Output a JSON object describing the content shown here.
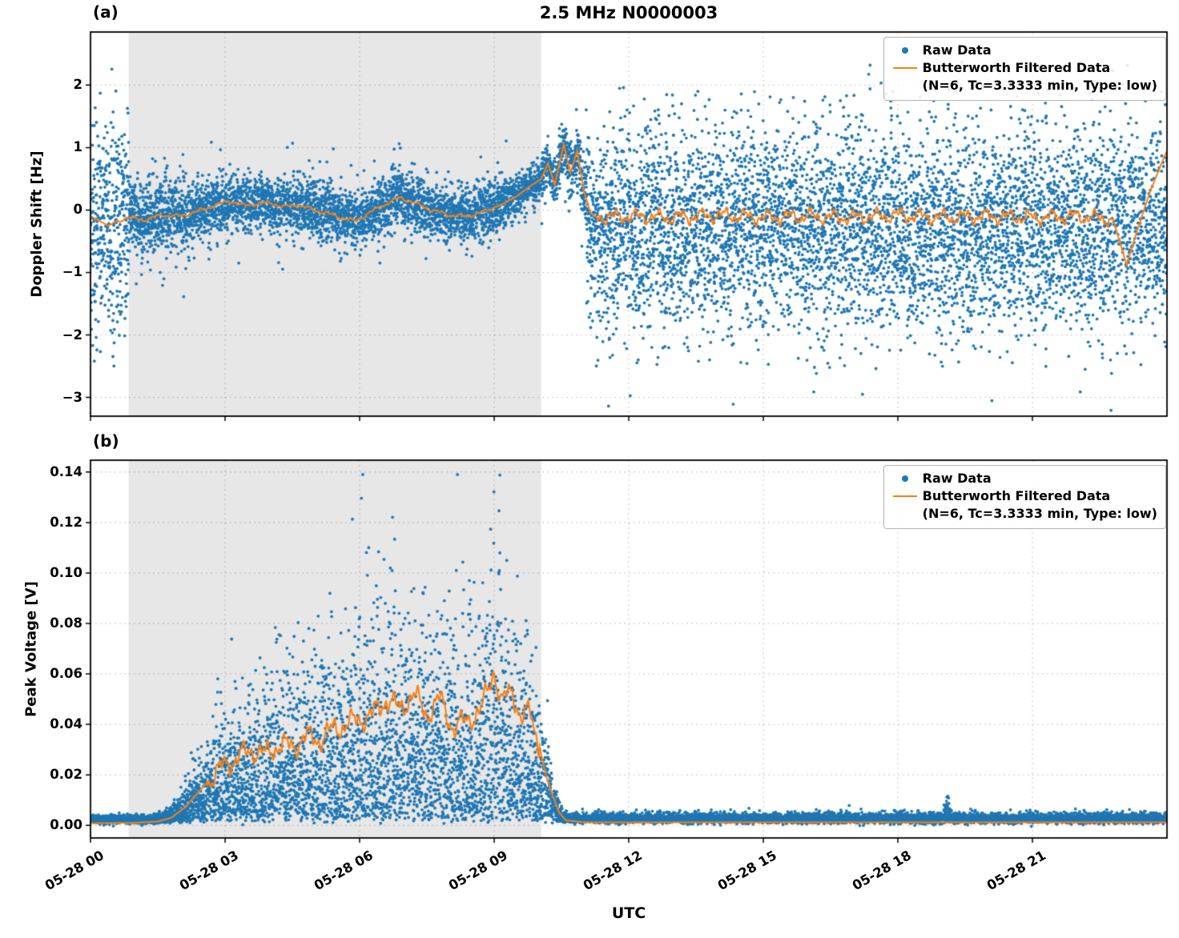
{
  "figure": {
    "title": "2.5 MHz N0000003",
    "panel_a_label": "(a)",
    "panel_b_label": "(b)",
    "xlabel": "UTC",
    "background": "#ffffff",
    "shade_color": "#e7e7e7"
  },
  "chart_data": [
    {
      "id": "a",
      "type": "scatter",
      "title": "2.5 MHz N0000003",
      "ylabel": "Doppler Shift [Hz]",
      "ylim": [
        -3.3,
        2.85
      ],
      "yticks": [
        {
          "v": 2,
          "label": "2"
        },
        {
          "v": 1,
          "label": "1"
        },
        {
          "v": 0,
          "label": "0"
        },
        {
          "v": -1,
          "label": "−1"
        },
        {
          "v": -2,
          "label": "−2"
        },
        {
          "v": -3,
          "label": "−3"
        }
      ],
      "xlim_hours": [
        0,
        24
      ],
      "xticks": [
        {
          "h": 0,
          "label": "05-28 00"
        },
        {
          "h": 3,
          "label": "05-28 03"
        },
        {
          "h": 6,
          "label": "05-28 06"
        },
        {
          "h": 9,
          "label": "05-28 09"
        },
        {
          "h": 12,
          "label": "05-28 12"
        },
        {
          "h": 15,
          "label": "05-28 15"
        },
        {
          "h": 18,
          "label": "05-28 18"
        },
        {
          "h": 21,
          "label": "05-28 21"
        }
      ],
      "xticklabels_visible": false,
      "grid": true,
      "legend_position": "upper right",
      "shaded_region_hours": [
        0.85,
        10.05
      ],
      "legend": {
        "raw": "Raw Data",
        "filtered_line1": "Butterworth Filtered Data",
        "filtered_line2": "(N=6, Tc=3.3333 min, Type: low)"
      },
      "series": {
        "raw": {
          "name": "Raw Data",
          "color": "#1f77b4",
          "marker_size": 1.9,
          "n_points": 11000,
          "segments": [
            {
              "t": [
                0,
                0.85
              ],
              "center": -0.25,
              "spread": 0.8,
              "outlier_frac": 0.03,
              "outlier_scale": 1.5
            },
            {
              "t": [
                0.85,
                2.2
              ],
              "follow": true,
              "spread": 0.3,
              "outlier_frac": 0.015,
              "outlier_scale": 0.8
            },
            {
              "t": [
                2.2,
                9.3
              ],
              "follow": true,
              "spread": 0.22,
              "outlier_frac": 0.012,
              "outlier_scale": 0.7
            },
            {
              "t": [
                9.3,
                10.45
              ],
              "follow": true,
              "spread": 0.16,
              "outlier_frac": 0.01,
              "outlier_scale": 0.5
            },
            {
              "t": [
                10.45,
                11.05
              ],
              "follow": true,
              "spread": 0.25,
              "outlier_frac": 0.02,
              "outlier_scale": 0.8
            },
            {
              "t": [
                11.05,
                24
              ],
              "center": -0.3,
              "spread": 0.78,
              "outlier_frac": 0.04,
              "outlier_scale": 1.5
            }
          ]
        },
        "filtered": {
          "name": "Butterworth Filtered Data (N=6, Tc=3.3333 min, Type: low)",
          "color": "#ff7f0e",
          "line_width": 2.0,
          "control_points": [
            [
              0,
              -0.1
            ],
            [
              0.4,
              -0.25
            ],
            [
              0.8,
              -0.12
            ],
            [
              1.2,
              -0.16
            ],
            [
              1.6,
              -0.08
            ],
            [
              2,
              -0.1
            ],
            [
              2.4,
              -0.02
            ],
            [
              2.8,
              0.08
            ],
            [
              3.1,
              0.15
            ],
            [
              3.4,
              0.07
            ],
            [
              3.7,
              0.1
            ],
            [
              4,
              0.12
            ],
            [
              4.3,
              0.05
            ],
            [
              4.6,
              0.08
            ],
            [
              5,
              0
            ],
            [
              5.4,
              -0.08
            ],
            [
              5.9,
              -0.18
            ],
            [
              6.2,
              -0.05
            ],
            [
              6.6,
              0.1
            ],
            [
              6.9,
              0.2
            ],
            [
              7.2,
              0.12
            ],
            [
              7.6,
              0
            ],
            [
              8,
              -0.08
            ],
            [
              8.4,
              -0.1
            ],
            [
              8.8,
              -0.02
            ],
            [
              9.2,
              0.1
            ],
            [
              9.5,
              0.22
            ],
            [
              9.8,
              0.38
            ],
            [
              10.05,
              0.5
            ],
            [
              10.2,
              0.75
            ],
            [
              10.35,
              0.4
            ],
            [
              10.55,
              1.05
            ],
            [
              10.7,
              0.6
            ],
            [
              10.85,
              0.95
            ],
            [
              11,
              0.3
            ],
            [
              11.15,
              -0.05
            ],
            [
              11.3,
              -0.12
            ],
            [
              12,
              -0.1
            ],
            [
              13,
              -0.12
            ],
            [
              14,
              -0.08
            ],
            [
              15,
              -0.12
            ],
            [
              16,
              -0.1
            ],
            [
              17,
              -0.12
            ],
            [
              18,
              -0.08
            ],
            [
              19,
              -0.12
            ],
            [
              20,
              -0.1
            ],
            [
              21,
              -0.12
            ],
            [
              22,
              -0.1
            ],
            [
              22.8,
              -0.15
            ],
            [
              23.1,
              -0.88
            ],
            [
              23.35,
              -0.3
            ],
            [
              23.6,
              0.25
            ],
            [
              23.85,
              0.7
            ],
            [
              24,
              0.95
            ]
          ],
          "wiggles": [
            {
              "t": [
                0.5,
                9.0
              ],
              "amp": 0.04
            },
            {
              "t": [
                11.3,
                22.7
              ],
              "amp": 0.15
            }
          ]
        }
      }
    },
    {
      "id": "b",
      "type": "scatter",
      "title": "",
      "ylabel": "Peak Voltage [V]",
      "ylim": [
        -0.005,
        0.1447
      ],
      "yticks": [
        {
          "v": 0.14,
          "label": "0.14"
        },
        {
          "v": 0.12,
          "label": "0.12"
        },
        {
          "v": 0.1,
          "label": "0.10"
        },
        {
          "v": 0.08,
          "label": "0.08"
        },
        {
          "v": 0.06,
          "label": "0.06"
        },
        {
          "v": 0.04,
          "label": "0.04"
        },
        {
          "v": 0.02,
          "label": "0.02"
        },
        {
          "v": 0.0,
          "label": "0.00"
        }
      ],
      "xlim_hours": [
        0,
        24
      ],
      "xticks": [
        {
          "h": 0,
          "label": "05-28 00"
        },
        {
          "h": 3,
          "label": "05-28 03"
        },
        {
          "h": 6,
          "label": "05-28 06"
        },
        {
          "h": 9,
          "label": "05-28 09"
        },
        {
          "h": 12,
          "label": "05-28 12"
        },
        {
          "h": 15,
          "label": "05-28 15"
        },
        {
          "h": 18,
          "label": "05-28 18"
        },
        {
          "h": 21,
          "label": "05-28 21"
        }
      ],
      "xticklabels_visible": true,
      "grid": true,
      "legend_position": "upper right",
      "shaded_region_hours": [
        0.85,
        10.05
      ],
      "legend": {
        "raw": "Raw Data",
        "filtered_line1": "Butterworth Filtered Data",
        "filtered_line2": "(N=6, Tc=3.3333 min, Type: low)"
      },
      "series": {
        "raw": {
          "name": "Raw Data",
          "color": "#1f77b4",
          "marker_size": 1.9,
          "n_points": 11000,
          "baseline": 0.0018,
          "baseline_noise": 0.0007,
          "shape_divisor": 2.6,
          "envelope_upper": [
            [
              0,
              0.0015
            ],
            [
              1.3,
              0.002
            ],
            [
              1.7,
              0.005
            ],
            [
              2.0,
              0.012
            ],
            [
              2.3,
              0.025
            ],
            [
              2.6,
              0.04
            ],
            [
              3.0,
              0.052
            ],
            [
              3.4,
              0.06
            ],
            [
              3.8,
              0.065
            ],
            [
              4.2,
              0.07
            ],
            [
              4.6,
              0.075
            ],
            [
              5.0,
              0.08
            ],
            [
              5.4,
              0.082
            ],
            [
              5.8,
              0.09
            ],
            [
              6.2,
              0.095
            ],
            [
              6.6,
              0.1
            ],
            [
              7.0,
              0.108
            ],
            [
              7.3,
              0.1
            ],
            [
              7.6,
              0.092
            ],
            [
              8.0,
              0.098
            ],
            [
              8.4,
              0.09
            ],
            [
              8.7,
              0.095
            ],
            [
              9.0,
              0.13
            ],
            [
              9.1,
              0.137
            ],
            [
              9.25,
              0.105
            ],
            [
              9.5,
              0.09
            ],
            [
              9.8,
              0.075
            ],
            [
              10.0,
              0.06
            ],
            [
              10.2,
              0.04
            ],
            [
              10.35,
              0.02
            ],
            [
              10.5,
              0.006
            ],
            [
              10.7,
              0.003
            ],
            [
              16.8,
              0.003
            ],
            [
              16.9,
              0.005
            ],
            [
              17.0,
              0.003
            ],
            [
              19.0,
              0.003
            ],
            [
              19.1,
              0.012
            ],
            [
              19.2,
              0.003
            ],
            [
              24,
              0.003
            ]
          ]
        },
        "filtered": {
          "name": "Butterworth Filtered Data (N=6, Tc=3.3333 min, Type: low)",
          "color": "#ff7f0e",
          "line_width": 2.0,
          "control_points": [
            [
              0,
              0.0008
            ],
            [
              1.0,
              0.001
            ],
            [
              1.5,
              0.0015
            ],
            [
              1.8,
              0.003
            ],
            [
              2.1,
              0.007
            ],
            [
              2.4,
              0.013
            ],
            [
              2.7,
              0.019
            ],
            [
              3.0,
              0.024
            ],
            [
              3.3,
              0.027
            ],
            [
              3.6,
              0.03
            ],
            [
              3.9,
              0.028
            ],
            [
              4.2,
              0.032
            ],
            [
              4.5,
              0.031
            ],
            [
              4.8,
              0.035
            ],
            [
              5.1,
              0.034
            ],
            [
              5.4,
              0.038
            ],
            [
              5.7,
              0.04
            ],
            [
              6.0,
              0.042
            ],
            [
              6.3,
              0.044
            ],
            [
              6.6,
              0.05
            ],
            [
              6.9,
              0.046
            ],
            [
              7.2,
              0.052
            ],
            [
              7.5,
              0.044
            ],
            [
              7.8,
              0.05
            ],
            [
              8.1,
              0.038
            ],
            [
              8.4,
              0.042
            ],
            [
              8.7,
              0.045
            ],
            [
              9.0,
              0.062
            ],
            [
              9.15,
              0.048
            ],
            [
              9.4,
              0.054
            ],
            [
              9.6,
              0.042
            ],
            [
              9.8,
              0.045
            ],
            [
              10.0,
              0.032
            ],
            [
              10.15,
              0.02
            ],
            [
              10.3,
              0.012
            ],
            [
              10.45,
              0.005
            ],
            [
              10.6,
              0.002
            ],
            [
              11,
              0.0012
            ],
            [
              24,
              0.0012
            ]
          ],
          "wiggles": [
            {
              "t": [
                2.6,
                10.0
              ],
              "amp": 0.006
            }
          ]
        }
      }
    }
  ]
}
